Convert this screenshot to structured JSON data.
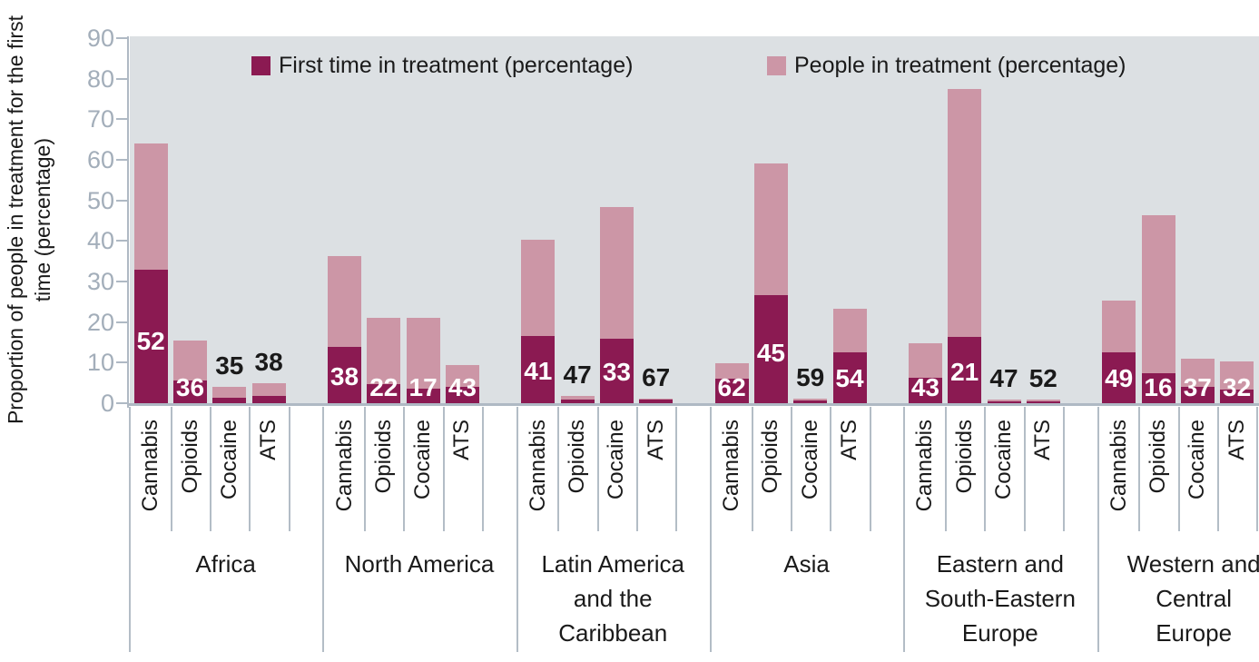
{
  "chart_data": {
    "type": "bar",
    "stacked": true,
    "ylabel": "Proportion of people in treatment for the first time (percentage)",
    "ylabel_lines": [
      "Proportion of people in treatment for the first",
      "time (percentage)"
    ],
    "ylim": [
      0,
      90
    ],
    "yticks": [
      0,
      10,
      20,
      30,
      40,
      50,
      60,
      70,
      80,
      90
    ],
    "grid": false,
    "legend_position": "top-inside",
    "legend": [
      {
        "label": "First time in treatment (percentage)",
        "color": "#8B1A52"
      },
      {
        "label": "People in treatment (percentage)",
        "color": "#CC96A6"
      }
    ],
    "bar_label_meaning": "percentage of people in treatment who are in treatment for the first time",
    "groups": [
      {
        "name": "Africa",
        "name_lines": [
          "Africa"
        ],
        "bars": [
          {
            "drug": "Cannabis",
            "people_total": 64.0,
            "first_time": 33.0,
            "pct_label": "52",
            "label_style": "white"
          },
          {
            "drug": "Opioids",
            "people_total": 15.5,
            "first_time": 5.5,
            "pct_label": "36",
            "label_style": "white"
          },
          {
            "drug": "Cocaine",
            "people_total": 4.0,
            "first_time": 1.4,
            "pct_label": "35",
            "label_style": "black"
          },
          {
            "drug": "ATS",
            "people_total": 5.0,
            "first_time": 1.9,
            "pct_label": "38",
            "label_style": "black"
          }
        ]
      },
      {
        "name": "North America",
        "name_lines": [
          "North America"
        ],
        "bars": [
          {
            "drug": "Cannabis",
            "people_total": 36.3,
            "first_time": 13.8,
            "pct_label": "38",
            "label_style": "white"
          },
          {
            "drug": "Opioids",
            "people_total": 21.0,
            "first_time": 4.6,
            "pct_label": "22",
            "label_style": "white"
          },
          {
            "drug": "Cocaine",
            "people_total": 21.0,
            "first_time": 3.6,
            "pct_label": "17",
            "label_style": "white"
          },
          {
            "drug": "ATS",
            "people_total": 9.5,
            "first_time": 4.1,
            "pct_label": "43",
            "label_style": "white"
          }
        ]
      },
      {
        "name": "Latin America and the Caribbean",
        "name_lines": [
          "Latin America",
          "and the",
          "Caribbean"
        ],
        "bars": [
          {
            "drug": "Cannabis",
            "people_total": 40.3,
            "first_time": 16.5,
            "pct_label": "41",
            "label_style": "white"
          },
          {
            "drug": "Opioids",
            "people_total": 1.7,
            "first_time": 0.8,
            "pct_label": "47",
            "label_style": "black"
          },
          {
            "drug": "Cocaine",
            "people_total": 48.3,
            "first_time": 16.0,
            "pct_label": "33",
            "label_style": "white"
          },
          {
            "drug": "ATS",
            "people_total": 1.2,
            "first_time": 0.8,
            "pct_label": "67",
            "label_style": "black"
          }
        ]
      },
      {
        "name": "Asia",
        "name_lines": [
          "Asia"
        ],
        "bars": [
          {
            "drug": "Cannabis",
            "people_total": 9.8,
            "first_time": 6.1,
            "pct_label": "62",
            "label_style": "white"
          },
          {
            "drug": "Opioids",
            "people_total": 59.2,
            "first_time": 26.6,
            "pct_label": "45",
            "label_style": "white"
          },
          {
            "drug": "Cocaine",
            "people_total": 1.1,
            "first_time": 0.65,
            "pct_label": "59",
            "label_style": "black"
          },
          {
            "drug": "ATS",
            "people_total": 23.2,
            "first_time": 12.5,
            "pct_label": "54",
            "label_style": "white"
          }
        ]
      },
      {
        "name": "Eastern and South-Eastern Europe",
        "name_lines": [
          "Eastern and",
          "South-Eastern",
          "Europe"
        ],
        "bars": [
          {
            "drug": "Cannabis",
            "people_total": 14.7,
            "first_time": 6.3,
            "pct_label": "43",
            "label_style": "white"
          },
          {
            "drug": "Opioids",
            "people_total": 77.4,
            "first_time": 16.3,
            "pct_label": "21",
            "label_style": "white"
          },
          {
            "drug": "Cocaine",
            "people_total": 1.0,
            "first_time": 0.47,
            "pct_label": "47",
            "label_style": "black"
          },
          {
            "drug": "ATS",
            "people_total": 0.9,
            "first_time": 0.47,
            "pct_label": "52",
            "label_style": "black"
          }
        ]
      },
      {
        "name": "Western and Central Europe",
        "name_lines": [
          "Western and",
          "Central",
          "Europe"
        ],
        "bars": [
          {
            "drug": "Cannabis",
            "people_total": 25.4,
            "first_time": 12.5,
            "pct_label": "49",
            "label_style": "white"
          },
          {
            "drug": "Opioids",
            "people_total": 46.3,
            "first_time": 7.4,
            "pct_label": "16",
            "label_style": "white"
          },
          {
            "drug": "Cocaine",
            "people_total": 10.9,
            "first_time": 4.0,
            "pct_label": "37",
            "label_style": "white"
          },
          {
            "drug": "ATS",
            "people_total": 10.4,
            "first_time": 3.3,
            "pct_label": "32",
            "label_style": "white"
          }
        ]
      }
    ],
    "colors": {
      "first_time": "#8B1A52",
      "people_in_treatment": "#CC96A6",
      "plot_background": "#DCE0E3",
      "axis_line": "#AFB9C4",
      "tick_text": "#A3AEBA",
      "text": "#1a1a1a"
    }
  }
}
